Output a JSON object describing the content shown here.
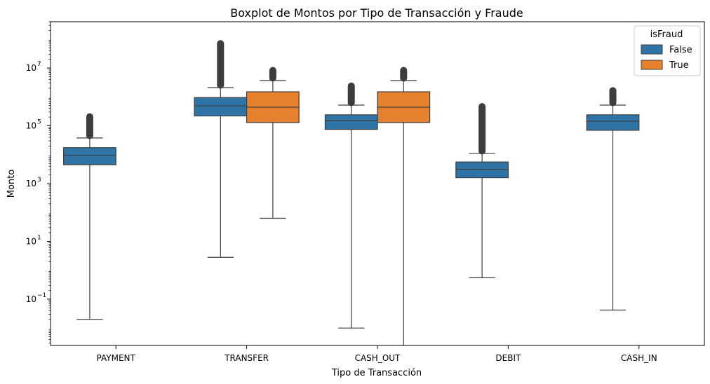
{
  "chart_data": {
    "type": "boxplot",
    "title": "Boxplot de Montos por Tipo de Transacción y Fraude",
    "xlabel": "Tipo de Transacción",
    "ylabel": "Monto",
    "yscale": "log",
    "ylim": [
      0.0025,
      400000000
    ],
    "yticks": [
      {
        "value": 0.1,
        "base": "10",
        "exp": "−1"
      },
      {
        "value": 10,
        "base": "10",
        "exp": "1"
      },
      {
        "value": 1000,
        "base": "10",
        "exp": "3"
      },
      {
        "value": 100000,
        "base": "10",
        "exp": "5"
      },
      {
        "value": 10000000,
        "base": "10",
        "exp": "7"
      }
    ],
    "categories": [
      "PAYMENT",
      "TRANSFER",
      "CASH_OUT",
      "DEBIT",
      "CASH_IN"
    ],
    "legend": {
      "title": "isFraud",
      "position": "top-right",
      "entries": [
        {
          "label": "False",
          "color": "#2f74a7"
        },
        {
          "label": "True",
          "color": "#e5802d"
        }
      ]
    },
    "series": [
      {
        "name": "False",
        "color": "#2f74a7",
        "boxes": [
          {
            "category": "PAYMENT",
            "whisker_low": 0.02,
            "q1": 4500,
            "median": 9500,
            "q3": 17500,
            "whisker_high": 38000,
            "outliers_low": 38000,
            "outliers_high": 250000
          },
          {
            "category": "TRANSFER",
            "whisker_low": 2.8,
            "q1": 220000,
            "median": 490000,
            "q3": 950000,
            "whisker_high": 2100000,
            "outliers_low": 2100000,
            "outliers_high": 85000000
          },
          {
            "category": "CASH_OUT",
            "whisker_low": 0.01,
            "q1": 75000,
            "median": 150000,
            "q3": 240000,
            "whisker_high": 520000,
            "outliers_low": 520000,
            "outliers_high": 2900000
          },
          {
            "category": "DEBIT",
            "whisker_low": 0.55,
            "q1": 1600,
            "median": 3100,
            "q3": 5600,
            "whisker_high": 11000,
            "outliers_low": 11000,
            "outliers_high": 560000
          },
          {
            "category": "CASH_IN",
            "whisker_low": 0.042,
            "q1": 70000,
            "median": 145000,
            "q3": 240000,
            "whisker_high": 520000,
            "outliers_low": 520000,
            "outliers_high": 2000000
          }
        ]
      },
      {
        "name": "True",
        "color": "#e5802d",
        "boxes": [
          {
            "category": "TRANSFER",
            "whisker_low": 63,
            "q1": 130000,
            "median": 440000,
            "q3": 1500000,
            "whisker_high": 3700000,
            "outliers_low": 3700000,
            "outliers_high": 10000000
          },
          {
            "category": "CASH_OUT",
            "whisker_low": 0,
            "q1": 130000,
            "median": 440000,
            "q3": 1500000,
            "whisker_high": 3700000,
            "outliers_low": 3700000,
            "outliers_high": 10000000
          }
        ]
      }
    ]
  }
}
